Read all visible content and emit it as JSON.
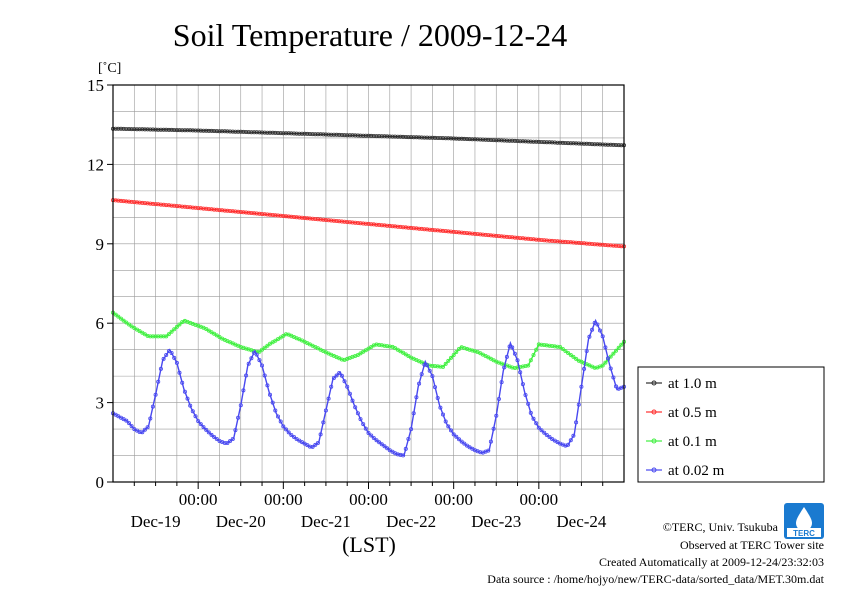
{
  "chart_data": {
    "type": "line",
    "title": "Soil Temperature / 2009-12-24",
    "ylabel": "[˚C]",
    "xlabel": "(LST)",
    "ylim": [
      0,
      15
    ],
    "yticks": [
      0,
      3,
      6,
      9,
      12,
      15
    ],
    "y_tick_labels": [
      "0",
      "3",
      "6",
      "9",
      "12",
      "15"
    ],
    "grid": true,
    "legend_position": "right",
    "xlim_hours": [
      0,
      144
    ],
    "x_tick_hours": [
      24,
      48,
      72,
      96,
      120
    ],
    "x_tick_labels": [
      "00:00",
      "00:00",
      "00:00",
      "00:00",
      "00:00"
    ],
    "x_date_labels": [
      "Dec-19",
      "Dec-20",
      "Dec-21",
      "Dec-22",
      "Dec-23",
      "Dec-24"
    ],
    "series": [
      {
        "name": "at 1.0 m",
        "color": "#303030",
        "x": [
          0,
          24,
          48,
          72,
          96,
          120,
          144
        ],
        "values": [
          13.35,
          13.28,
          13.18,
          13.08,
          12.98,
          12.85,
          12.72
        ]
      },
      {
        "name": "at 0.5 m",
        "color": "#ff3030",
        "x": [
          0,
          24,
          48,
          72,
          96,
          120,
          144
        ],
        "values": [
          10.65,
          10.35,
          10.05,
          9.75,
          9.45,
          9.15,
          8.9
        ]
      },
      {
        "name": "at 0.1 m",
        "color": "#40f040",
        "x": [
          0,
          5,
          10,
          15,
          20,
          26,
          31,
          36,
          41,
          44,
          49,
          54,
          60,
          65,
          69,
          74,
          79,
          84,
          89,
          93,
          98,
          103,
          108,
          113,
          117,
          120,
          126,
          131,
          136,
          138,
          144
        ],
        "values": [
          6.4,
          5.9,
          5.5,
          5.5,
          6.1,
          5.8,
          5.4,
          5.1,
          4.9,
          5.2,
          5.6,
          5.3,
          4.9,
          4.6,
          4.8,
          5.2,
          5.1,
          4.7,
          4.4,
          4.35,
          5.1,
          4.9,
          4.55,
          4.3,
          4.4,
          5.2,
          5.1,
          4.6,
          4.3,
          4.4,
          5.3
        ]
      },
      {
        "name": "at 0.02 m",
        "color": "#4848f0",
        "x": [
          0,
          2,
          4,
          6,
          8,
          10,
          12,
          14,
          16,
          18,
          20,
          22,
          24,
          26,
          28,
          30,
          32,
          34,
          36,
          38,
          40,
          42,
          44,
          46,
          48,
          50,
          52,
          54,
          56,
          58,
          60,
          62,
          64,
          66,
          68,
          70,
          72,
          74,
          76,
          78,
          80,
          82,
          84,
          86,
          88,
          90,
          92,
          94,
          96,
          98,
          100,
          102,
          104,
          106,
          108,
          110,
          112,
          114,
          116,
          118,
          120,
          122,
          124,
          126,
          128,
          130,
          132,
          134,
          136,
          138,
          140,
          142,
          144
        ],
        "values": [
          2.6,
          2.45,
          2.3,
          2.0,
          1.85,
          2.1,
          3.3,
          4.6,
          5.0,
          4.5,
          3.5,
          2.8,
          2.3,
          2.0,
          1.75,
          1.55,
          1.45,
          1.65,
          2.9,
          4.4,
          4.95,
          4.4,
          3.4,
          2.6,
          2.1,
          1.8,
          1.6,
          1.45,
          1.3,
          1.5,
          2.7,
          3.9,
          4.15,
          3.6,
          2.9,
          2.3,
          1.85,
          1.6,
          1.4,
          1.2,
          1.05,
          1.0,
          2.0,
          3.6,
          4.55,
          4.0,
          2.9,
          2.2,
          1.8,
          1.55,
          1.35,
          1.2,
          1.1,
          1.2,
          2.5,
          4.2,
          5.25,
          4.6,
          3.4,
          2.5,
          2.05,
          1.8,
          1.6,
          1.45,
          1.35,
          1.8,
          3.6,
          5.4,
          6.1,
          5.5,
          4.4,
          3.5,
          3.6
        ]
      }
    ]
  },
  "credits": {
    "copyright": "©TERC, Univ. Tsukuba",
    "observed": "Observed at TERC Tower site",
    "created": "Created Automatically at 2009-12-24/23:32:03",
    "source": "Data source : /home/hojyo/new/TERC-data/sorted_data/MET.30m.dat",
    "logo_text": "TERC",
    "logo_color": "#1a7ad0"
  }
}
